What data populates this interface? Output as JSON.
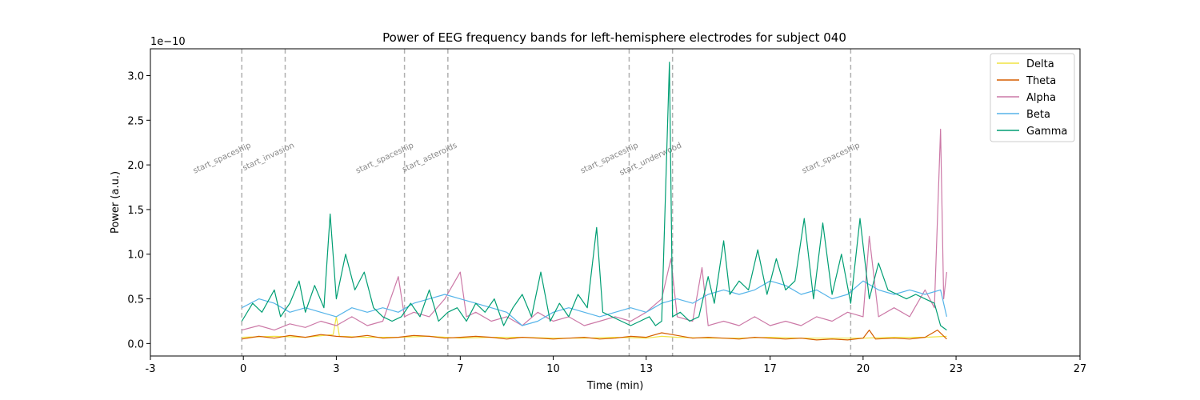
{
  "chart_data": {
    "type": "line",
    "title": "Power of EEG frequency bands for left-hemisphere electrodes for subject 040",
    "xlabel": "Time (min)",
    "ylabel": "Power (a.u.)",
    "y_offset_label": "1e−10",
    "xlim": [
      -3,
      27
    ],
    "ylim": [
      -0.14,
      3.3
    ],
    "xticks": [
      {
        "value": -3,
        "label": "-3"
      },
      {
        "value": 0,
        "label": "0"
      },
      {
        "value": 3,
        "label": "3"
      },
      {
        "value": 7,
        "label": "7"
      },
      {
        "value": 10,
        "label": "10"
      },
      {
        "value": 13,
        "label": "13"
      },
      {
        "value": 17,
        "label": "17"
      },
      {
        "value": 20,
        "label": "20"
      },
      {
        "value": 23,
        "label": "23"
      },
      {
        "value": 27,
        "label": "27"
      }
    ],
    "yticks": [
      {
        "value": 0.0,
        "label": "0.0"
      },
      {
        "value": 0.5,
        "label": "0.5"
      },
      {
        "value": 1.0,
        "label": "1.0"
      },
      {
        "value": 1.5,
        "label": "1.5"
      },
      {
        "value": 2.0,
        "label": "2.0"
      },
      {
        "value": 2.5,
        "label": "2.5"
      },
      {
        "value": 3.0,
        "label": "3.0"
      }
    ],
    "grid": false,
    "legend_position": "upper right",
    "events": [
      {
        "x": -0.05,
        "label": "start_spaceship"
      },
      {
        "x": 1.35,
        "label": "start_invasion"
      },
      {
        "x": 5.2,
        "label": "start_spaceship"
      },
      {
        "x": 6.6,
        "label": "start_asteroids"
      },
      {
        "x": 12.45,
        "label": "start_spaceship"
      },
      {
        "x": 13.85,
        "label": "start_underwood"
      },
      {
        "x": 19.6,
        "label": "start_spaceship"
      }
    ],
    "series": [
      {
        "name": "Delta",
        "color": "#f0e442",
        "points": [
          [
            -0.05,
            0.07
          ],
          [
            1,
            0.08
          ],
          [
            2,
            0.07
          ],
          [
            2.9,
            0.1
          ],
          [
            3.0,
            0.3
          ],
          [
            3.1,
            0.08
          ],
          [
            4,
            0.07
          ],
          [
            5,
            0.07
          ],
          [
            6,
            0.08
          ],
          [
            7,
            0.06
          ],
          [
            8,
            0.07
          ],
          [
            9,
            0.07
          ],
          [
            10,
            0.06
          ],
          [
            11,
            0.06
          ],
          [
            12,
            0.07
          ],
          [
            13,
            0.06
          ],
          [
            13.5,
            0.08
          ],
          [
            14,
            0.07
          ],
          [
            15,
            0.06
          ],
          [
            16,
            0.06
          ],
          [
            17,
            0.07
          ],
          [
            18,
            0.06
          ],
          [
            19,
            0.06
          ],
          [
            20,
            0.06
          ],
          [
            21,
            0.07
          ],
          [
            22,
            0.07
          ],
          [
            22.7,
            0.08
          ]
        ]
      },
      {
        "name": "Theta",
        "color": "#d55e00",
        "points": [
          [
            -0.05,
            0.05
          ],
          [
            0.5,
            0.08
          ],
          [
            1,
            0.06
          ],
          [
            1.5,
            0.09
          ],
          [
            2,
            0.07
          ],
          [
            2.5,
            0.1
          ],
          [
            3,
            0.08
          ],
          [
            3.5,
            0.07
          ],
          [
            4,
            0.09
          ],
          [
            4.5,
            0.06
          ],
          [
            5,
            0.07
          ],
          [
            5.5,
            0.09
          ],
          [
            6,
            0.08
          ],
          [
            6.5,
            0.06
          ],
          [
            7,
            0.07
          ],
          [
            7.5,
            0.08
          ],
          [
            8,
            0.07
          ],
          [
            8.5,
            0.05
          ],
          [
            9,
            0.07
          ],
          [
            9.5,
            0.06
          ],
          [
            10,
            0.05
          ],
          [
            10.5,
            0.06
          ],
          [
            11,
            0.07
          ],
          [
            11.5,
            0.05
          ],
          [
            12,
            0.06
          ],
          [
            12.5,
            0.08
          ],
          [
            13,
            0.07
          ],
          [
            13.5,
            0.12
          ],
          [
            14,
            0.09
          ],
          [
            14.5,
            0.06
          ],
          [
            15,
            0.07
          ],
          [
            15.5,
            0.06
          ],
          [
            16,
            0.05
          ],
          [
            16.5,
            0.07
          ],
          [
            17,
            0.06
          ],
          [
            17.5,
            0.05
          ],
          [
            18,
            0.06
          ],
          [
            18.5,
            0.04
          ],
          [
            19,
            0.05
          ],
          [
            19.5,
            0.04
          ],
          [
            20,
            0.06
          ],
          [
            20.2,
            0.15
          ],
          [
            20.4,
            0.05
          ],
          [
            21,
            0.06
          ],
          [
            21.5,
            0.05
          ],
          [
            22,
            0.07
          ],
          [
            22.4,
            0.15
          ],
          [
            22.7,
            0.05
          ]
        ]
      },
      {
        "name": "Alpha",
        "color": "#cc79a7",
        "points": [
          [
            -0.05,
            0.15
          ],
          [
            0.5,
            0.2
          ],
          [
            1,
            0.15
          ],
          [
            1.5,
            0.22
          ],
          [
            2,
            0.18
          ],
          [
            2.5,
            0.25
          ],
          [
            3,
            0.2
          ],
          [
            3.5,
            0.3
          ],
          [
            4,
            0.2
          ],
          [
            4.5,
            0.25
          ],
          [
            5,
            0.75
          ],
          [
            5.2,
            0.3
          ],
          [
            5.5,
            0.35
          ],
          [
            6,
            0.3
          ],
          [
            6.5,
            0.5
          ],
          [
            7,
            0.8
          ],
          [
            7.2,
            0.3
          ],
          [
            7.5,
            0.35
          ],
          [
            8,
            0.25
          ],
          [
            8.5,
            0.3
          ],
          [
            9,
            0.2
          ],
          [
            9.5,
            0.35
          ],
          [
            10,
            0.25
          ],
          [
            10.5,
            0.3
          ],
          [
            11,
            0.2
          ],
          [
            11.5,
            0.25
          ],
          [
            12,
            0.3
          ],
          [
            12.5,
            0.25
          ],
          [
            13,
            0.35
          ],
          [
            13.5,
            0.5
          ],
          [
            13.8,
            0.95
          ],
          [
            14,
            0.3
          ],
          [
            14.5,
            0.25
          ],
          [
            14.8,
            0.85
          ],
          [
            15,
            0.2
          ],
          [
            15.5,
            0.25
          ],
          [
            16,
            0.2
          ],
          [
            16.5,
            0.3
          ],
          [
            17,
            0.2
          ],
          [
            17.5,
            0.25
          ],
          [
            18,
            0.2
          ],
          [
            18.5,
            0.3
          ],
          [
            19,
            0.25
          ],
          [
            19.5,
            0.35
          ],
          [
            20,
            0.3
          ],
          [
            20.2,
            1.2
          ],
          [
            20.5,
            0.3
          ],
          [
            21,
            0.4
          ],
          [
            21.5,
            0.3
          ],
          [
            22,
            0.6
          ],
          [
            22.3,
            0.4
          ],
          [
            22.5,
            2.4
          ],
          [
            22.6,
            0.5
          ],
          [
            22.7,
            0.8
          ]
        ]
      },
      {
        "name": "Beta",
        "color": "#56b4e9",
        "points": [
          [
            -0.05,
            0.4
          ],
          [
            0.5,
            0.5
          ],
          [
            1,
            0.45
          ],
          [
            1.5,
            0.35
          ],
          [
            2,
            0.4
          ],
          [
            2.5,
            0.35
          ],
          [
            3,
            0.3
          ],
          [
            3.5,
            0.4
          ],
          [
            4,
            0.35
          ],
          [
            4.5,
            0.4
          ],
          [
            5,
            0.35
          ],
          [
            5.5,
            0.45
          ],
          [
            6,
            0.5
          ],
          [
            6.5,
            0.55
          ],
          [
            7,
            0.5
          ],
          [
            7.5,
            0.45
          ],
          [
            8,
            0.4
          ],
          [
            8.5,
            0.35
          ],
          [
            9,
            0.2
          ],
          [
            9.5,
            0.25
          ],
          [
            10,
            0.35
          ],
          [
            10.5,
            0.4
          ],
          [
            11,
            0.35
          ],
          [
            11.5,
            0.3
          ],
          [
            12,
            0.35
          ],
          [
            12.5,
            0.4
          ],
          [
            13,
            0.35
          ],
          [
            13.5,
            0.45
          ],
          [
            14,
            0.5
          ],
          [
            14.5,
            0.45
          ],
          [
            15,
            0.55
          ],
          [
            15.5,
            0.6
          ],
          [
            16,
            0.55
          ],
          [
            16.5,
            0.6
          ],
          [
            17,
            0.7
          ],
          [
            17.5,
            0.65
          ],
          [
            18,
            0.55
          ],
          [
            18.5,
            0.6
          ],
          [
            19,
            0.5
          ],
          [
            19.5,
            0.55
          ],
          [
            20,
            0.7
          ],
          [
            20.5,
            0.6
          ],
          [
            21,
            0.55
          ],
          [
            21.5,
            0.6
          ],
          [
            22,
            0.55
          ],
          [
            22.5,
            0.6
          ],
          [
            22.7,
            0.3
          ]
        ]
      },
      {
        "name": "Gamma",
        "color": "#009e73",
        "points": [
          [
            -0.05,
            0.25
          ],
          [
            0.3,
            0.45
          ],
          [
            0.6,
            0.35
          ],
          [
            1,
            0.6
          ],
          [
            1.2,
            0.3
          ],
          [
            1.5,
            0.45
          ],
          [
            1.8,
            0.7
          ],
          [
            2,
            0.35
          ],
          [
            2.3,
            0.65
          ],
          [
            2.6,
            0.4
          ],
          [
            2.8,
            1.45
          ],
          [
            3,
            0.5
          ],
          [
            3.3,
            1.0
          ],
          [
            3.6,
            0.6
          ],
          [
            3.9,
            0.8
          ],
          [
            4.2,
            0.4
          ],
          [
            4.5,
            0.3
          ],
          [
            4.8,
            0.25
          ],
          [
            5.1,
            0.3
          ],
          [
            5.4,
            0.45
          ],
          [
            5.7,
            0.3
          ],
          [
            6,
            0.6
          ],
          [
            6.3,
            0.25
          ],
          [
            6.6,
            0.35
          ],
          [
            6.9,
            0.4
          ],
          [
            7.2,
            0.25
          ],
          [
            7.5,
            0.45
          ],
          [
            7.8,
            0.35
          ],
          [
            8.1,
            0.5
          ],
          [
            8.4,
            0.2
          ],
          [
            8.7,
            0.4
          ],
          [
            9,
            0.55
          ],
          [
            9.3,
            0.3
          ],
          [
            9.6,
            0.8
          ],
          [
            9.9,
            0.25
          ],
          [
            10.2,
            0.45
          ],
          [
            10.5,
            0.3
          ],
          [
            10.8,
            0.55
          ],
          [
            11.1,
            0.4
          ],
          [
            11.4,
            1.3
          ],
          [
            11.6,
            0.35
          ],
          [
            11.9,
            0.3
          ],
          [
            12.2,
            0.25
          ],
          [
            12.5,
            0.2
          ],
          [
            12.8,
            0.25
          ],
          [
            13.1,
            0.3
          ],
          [
            13.3,
            0.2
          ],
          [
            13.5,
            0.25
          ],
          [
            13.75,
            3.15
          ],
          [
            13.85,
            0.3
          ],
          [
            14.1,
            0.35
          ],
          [
            14.4,
            0.25
          ],
          [
            14.7,
            0.3
          ],
          [
            15,
            0.75
          ],
          [
            15.2,
            0.45
          ],
          [
            15.5,
            1.15
          ],
          [
            15.7,
            0.55
          ],
          [
            16,
            0.7
          ],
          [
            16.3,
            0.6
          ],
          [
            16.6,
            1.05
          ],
          [
            16.9,
            0.55
          ],
          [
            17.2,
            0.95
          ],
          [
            17.5,
            0.6
          ],
          [
            17.8,
            0.7
          ],
          [
            18.1,
            1.4
          ],
          [
            18.4,
            0.5
          ],
          [
            18.7,
            1.35
          ],
          [
            19,
            0.55
          ],
          [
            19.3,
            1.0
          ],
          [
            19.6,
            0.45
          ],
          [
            19.9,
            1.4
          ],
          [
            20.2,
            0.5
          ],
          [
            20.5,
            0.9
          ],
          [
            20.8,
            0.6
          ],
          [
            21.1,
            0.55
          ],
          [
            21.4,
            0.5
          ],
          [
            21.7,
            0.55
          ],
          [
            22,
            0.5
          ],
          [
            22.3,
            0.45
          ],
          [
            22.5,
            0.2
          ],
          [
            22.7,
            0.15
          ]
        ]
      }
    ]
  }
}
